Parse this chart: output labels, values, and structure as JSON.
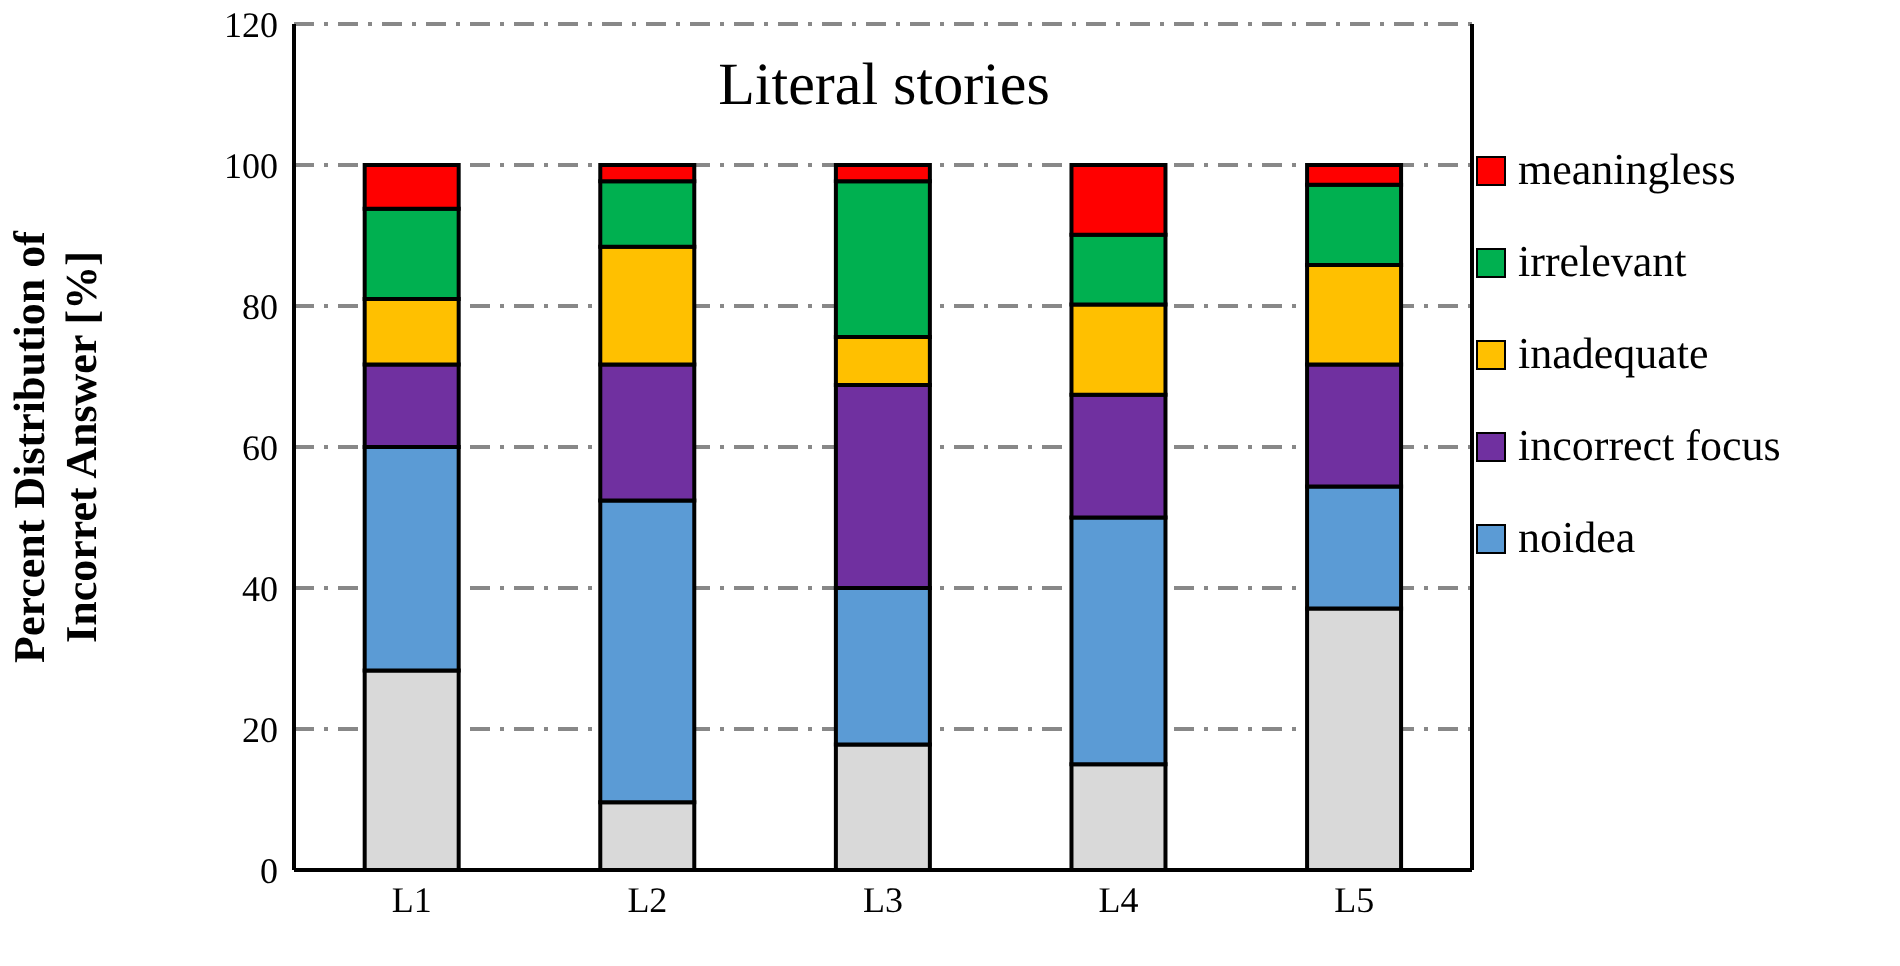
{
  "chart_data": {
    "type": "bar",
    "stacked": true,
    "title": "Literal stories",
    "ylabel": "Percent Distribution of\nIncorret Answer [%]",
    "categories": [
      "L1",
      "L2",
      "L3",
      "L4",
      "L5"
    ],
    "series": [
      {
        "color": "#d9d9d9",
        "values": [
          28.3,
          9.6,
          17.8,
          15,
          37.1
        ]
      },
      {
        "name": "noidea",
        "color": "#5b9bd5",
        "values": [
          31.7,
          42.8,
          22.2,
          35,
          17.3
        ]
      },
      {
        "name": "incorrect focus",
        "color": "#7030a0",
        "values": [
          11.7,
          19.3,
          28.8,
          17.4,
          17.3
        ]
      },
      {
        "name": "inadequate",
        "color": "#ffc000",
        "values": [
          9.3,
          16.7,
          6.8,
          12.8,
          14.1
        ]
      },
      {
        "name": "irrelevant",
        "color": "#00b050",
        "values": [
          12.8,
          9.3,
          22.1,
          9.9,
          11.4
        ]
      },
      {
        "name": "meaningless",
        "color": "#ff0000",
        "values": [
          6.2,
          2.3,
          2.3,
          9.9,
          2.8
        ]
      }
    ],
    "ylim": [
      0,
      120
    ],
    "yticks": [
      0,
      20,
      40,
      60,
      80,
      100,
      120
    ],
    "grid": "y",
    "legend": "right"
  }
}
